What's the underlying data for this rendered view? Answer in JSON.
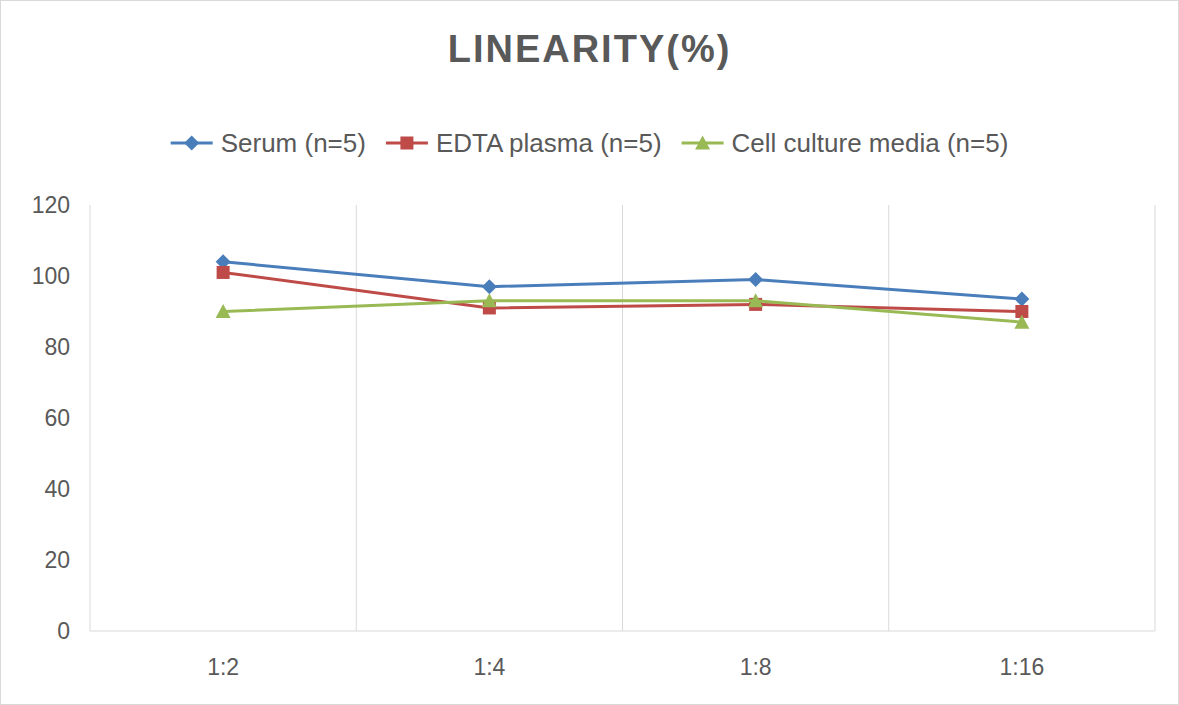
{
  "chart_data": {
    "type": "line",
    "title": "LINEARITY(%)",
    "categories": [
      "1:2",
      "1:4",
      "1:8",
      "1:16"
    ],
    "series": [
      {
        "name": "Serum (n=5)",
        "color": "#4a7ebb",
        "marker": "diamond",
        "values": [
          104,
          97,
          99,
          93.5
        ]
      },
      {
        "name": "EDTA plasma (n=5)",
        "color": "#be4b48",
        "marker": "square",
        "values": [
          101,
          91,
          92,
          90
        ]
      },
      {
        "name": "Cell culture media (n=5)",
        "color": "#98b954",
        "marker": "triangle",
        "values": [
          90,
          93,
          93,
          87
        ]
      }
    ],
    "ylim": [
      0,
      120
    ],
    "yticks": [
      0,
      20,
      40,
      60,
      80,
      100,
      120
    ],
    "grid": true,
    "legend": "top"
  }
}
